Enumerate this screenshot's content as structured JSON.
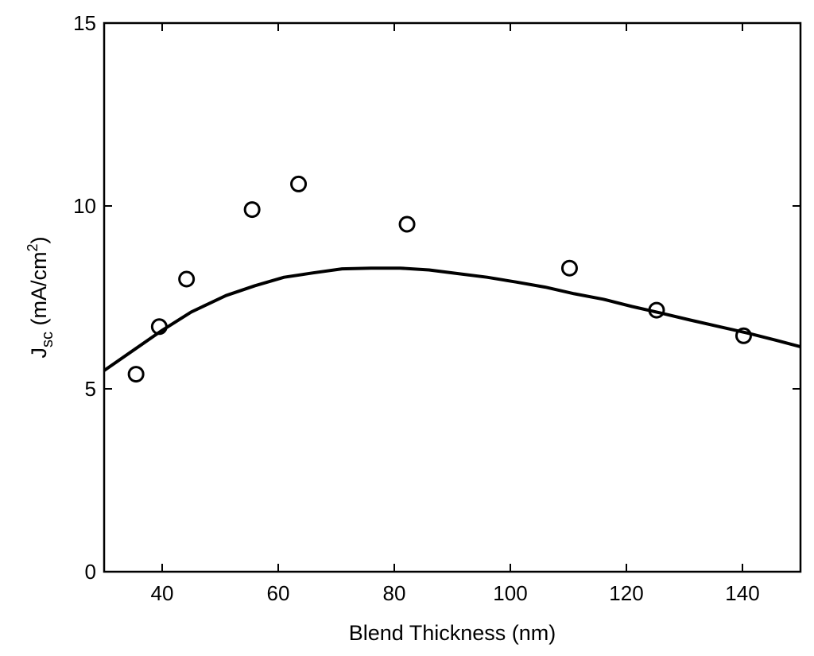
{
  "chart_data": {
    "type": "scatter",
    "title": "",
    "xlabel": "Blend Thickness (nm)",
    "ylabel": {
      "base": "J",
      "subscript": "sc",
      "text": " (mA/cm",
      "superscript": "2",
      "close": ")"
    },
    "xlim": [
      30,
      150
    ],
    "ylim": [
      0,
      15
    ],
    "xticks": [
      40,
      60,
      80,
      100,
      120,
      140
    ],
    "yticks": [
      0,
      5,
      10,
      15
    ],
    "grid": false,
    "legend": null,
    "series": [
      {
        "kind": "markers",
        "marker": "open-circle",
        "color": "#000000",
        "x": [
          35.5,
          39.5,
          44.2,
          55.5,
          63.5,
          82.2,
          110.2,
          125.2,
          140.2
        ],
        "y": [
          5.4,
          6.7,
          8.0,
          9.9,
          10.6,
          9.5,
          8.3,
          7.15,
          6.45
        ]
      },
      {
        "kind": "line",
        "color": "#000000",
        "x": [
          30,
          35,
          40,
          45,
          51,
          56,
          61,
          66,
          71,
          76,
          81,
          86,
          91,
          96,
          101,
          106,
          111,
          116,
          121,
          126,
          131,
          136,
          141,
          146,
          150
        ],
        "y": [
          5.5,
          6.05,
          6.6,
          7.1,
          7.55,
          7.82,
          8.05,
          8.17,
          8.28,
          8.3,
          8.3,
          8.25,
          8.15,
          8.05,
          7.92,
          7.78,
          7.6,
          7.45,
          7.25,
          7.07,
          6.88,
          6.7,
          6.52,
          6.32,
          6.15
        ]
      }
    ]
  }
}
